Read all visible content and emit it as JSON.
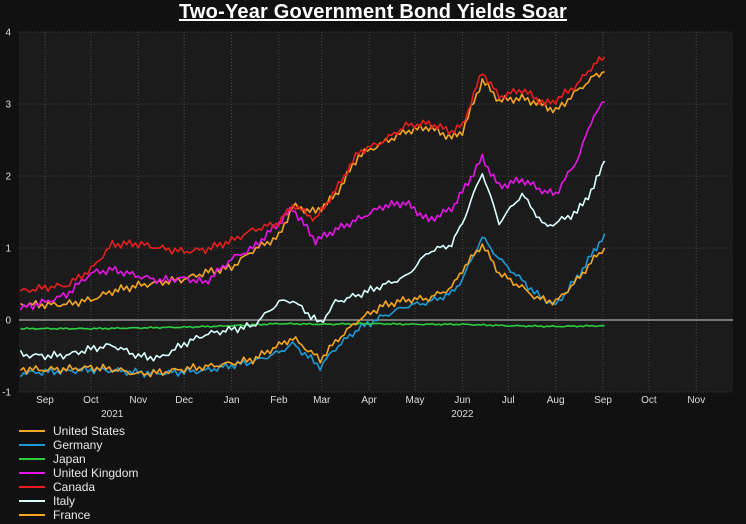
{
  "chart_data": {
    "type": "line",
    "title": "Two-Year Government Bond Yields Soar",
    "xlabel": "",
    "ylabel": "",
    "ylim": [
      -1,
      4
    ],
    "yticks": [
      -1,
      0,
      1,
      2,
      3,
      4
    ],
    "xlim": [
      "2021-08-15",
      "2022-11-25"
    ],
    "xticks": [
      {
        "date": "2021-09-01",
        "label": "Sep"
      },
      {
        "date": "2021-10-01",
        "label": "Oct"
      },
      {
        "date": "2021-11-01",
        "label": "Nov"
      },
      {
        "date": "2021-12-01",
        "label": "Dec"
      },
      {
        "date": "2022-01-01",
        "label": "Jan"
      },
      {
        "date": "2022-02-01",
        "label": "Feb"
      },
      {
        "date": "2022-03-01",
        "label": "Mar"
      },
      {
        "date": "2022-04-01",
        "label": "Apr"
      },
      {
        "date": "2022-05-01",
        "label": "May"
      },
      {
        "date": "2022-06-01",
        "label": "Jun"
      },
      {
        "date": "2022-07-01",
        "label": "Jul"
      },
      {
        "date": "2022-08-01",
        "label": "Aug"
      },
      {
        "date": "2022-09-01",
        "label": "Sep"
      },
      {
        "date": "2022-10-01",
        "label": "Oct"
      },
      {
        "date": "2022-11-01",
        "label": "Nov"
      }
    ],
    "year_labels": [
      {
        "date": "2021-10-15",
        "label": "2021"
      },
      {
        "date": "2022-06-01",
        "label": "2022"
      }
    ],
    "grid": true,
    "legend_position": "bottom-left",
    "series": [
      {
        "name": "United States",
        "color": "#f5a623",
        "points": [
          [
            "2021-08-16",
            0.22
          ],
          [
            "2021-09-01",
            0.21
          ],
          [
            "2021-09-15",
            0.22
          ],
          [
            "2021-10-01",
            0.28
          ],
          [
            "2021-10-15",
            0.4
          ],
          [
            "2021-11-01",
            0.48
          ],
          [
            "2021-11-15",
            0.52
          ],
          [
            "2021-12-01",
            0.57
          ],
          [
            "2021-12-15",
            0.66
          ],
          [
            "2022-01-01",
            0.73
          ],
          [
            "2022-01-15",
            0.97
          ],
          [
            "2022-02-01",
            1.16
          ],
          [
            "2022-02-10",
            1.58
          ],
          [
            "2022-02-25",
            1.5
          ],
          [
            "2022-03-10",
            1.73
          ],
          [
            "2022-03-25",
            2.28
          ],
          [
            "2022-04-10",
            2.46
          ],
          [
            "2022-04-25",
            2.62
          ],
          [
            "2022-05-10",
            2.68
          ],
          [
            "2022-05-25",
            2.53
          ],
          [
            "2022-06-01",
            2.62
          ],
          [
            "2022-06-14",
            3.33
          ],
          [
            "2022-06-25",
            3.05
          ],
          [
            "2022-07-10",
            3.08
          ],
          [
            "2022-07-25",
            2.98
          ],
          [
            "2022-08-01",
            2.9
          ],
          [
            "2022-08-15",
            3.18
          ],
          [
            "2022-08-26",
            3.38
          ],
          [
            "2022-09-02",
            3.45
          ]
        ]
      },
      {
        "name": "Germany",
        "color": "#1e9bd7",
        "points": [
          [
            "2021-08-16",
            -0.74
          ],
          [
            "2021-09-01",
            -0.72
          ],
          [
            "2021-09-15",
            -0.71
          ],
          [
            "2021-10-01",
            -0.69
          ],
          [
            "2021-10-15",
            -0.7
          ],
          [
            "2021-11-01",
            -0.73
          ],
          [
            "2021-11-15",
            -0.74
          ],
          [
            "2021-12-01",
            -0.72
          ],
          [
            "2021-12-15",
            -0.7
          ],
          [
            "2022-01-01",
            -0.63
          ],
          [
            "2022-01-15",
            -0.58
          ],
          [
            "2022-02-01",
            -0.45
          ],
          [
            "2022-02-10",
            -0.33
          ],
          [
            "2022-02-28",
            -0.65
          ],
          [
            "2022-03-10",
            -0.39
          ],
          [
            "2022-03-25",
            -0.12
          ],
          [
            "2022-04-10",
            0.05
          ],
          [
            "2022-04-25",
            0.19
          ],
          [
            "2022-05-10",
            0.25
          ],
          [
            "2022-05-25",
            0.37
          ],
          [
            "2022-06-01",
            0.57
          ],
          [
            "2022-06-14",
            1.15
          ],
          [
            "2022-06-25",
            0.85
          ],
          [
            "2022-07-10",
            0.55
          ],
          [
            "2022-07-20",
            0.35
          ],
          [
            "2022-08-01",
            0.2
          ],
          [
            "2022-08-15",
            0.59
          ],
          [
            "2022-08-26",
            0.95
          ],
          [
            "2022-09-02",
            1.2
          ]
        ]
      },
      {
        "name": "Japan",
        "color": "#2ecc40",
        "points": [
          [
            "2021-08-16",
            -0.12
          ],
          [
            "2021-09-01",
            -0.12
          ],
          [
            "2021-10-01",
            -0.12
          ],
          [
            "2021-11-01",
            -0.11
          ],
          [
            "2021-12-01",
            -0.1
          ],
          [
            "2022-01-01",
            -0.08
          ],
          [
            "2022-02-01",
            -0.05
          ],
          [
            "2022-03-01",
            -0.06
          ],
          [
            "2022-04-01",
            -0.05
          ],
          [
            "2022-05-01",
            -0.06
          ],
          [
            "2022-06-01",
            -0.06
          ],
          [
            "2022-07-01",
            -0.08
          ],
          [
            "2022-08-01",
            -0.09
          ],
          [
            "2022-09-02",
            -0.08
          ]
        ]
      },
      {
        "name": "United Kingdom",
        "color": "#e815e8",
        "points": [
          [
            "2021-08-16",
            0.16
          ],
          [
            "2021-09-01",
            0.25
          ],
          [
            "2021-09-15",
            0.35
          ],
          [
            "2021-10-01",
            0.65
          ],
          [
            "2021-10-15",
            0.7
          ],
          [
            "2021-11-01",
            0.61
          ],
          [
            "2021-11-15",
            0.55
          ],
          [
            "2021-12-01",
            0.58
          ],
          [
            "2021-12-15",
            0.52
          ],
          [
            "2022-01-01",
            0.85
          ],
          [
            "2022-01-15",
            1.0
          ],
          [
            "2022-02-01",
            1.35
          ],
          [
            "2022-02-10",
            1.55
          ],
          [
            "2022-02-25",
            1.1
          ],
          [
            "2022-03-10",
            1.25
          ],
          [
            "2022-03-25",
            1.4
          ],
          [
            "2022-04-10",
            1.58
          ],
          [
            "2022-04-25",
            1.63
          ],
          [
            "2022-05-10",
            1.38
          ],
          [
            "2022-05-25",
            1.55
          ],
          [
            "2022-06-01",
            1.78
          ],
          [
            "2022-06-14",
            2.25
          ],
          [
            "2022-06-25",
            1.85
          ],
          [
            "2022-07-10",
            1.95
          ],
          [
            "2022-07-25",
            1.78
          ],
          [
            "2022-08-01",
            1.75
          ],
          [
            "2022-08-15",
            2.22
          ],
          [
            "2022-08-26",
            2.85
          ],
          [
            "2022-09-02",
            3.03
          ]
        ]
      },
      {
        "name": "Canada",
        "color": "#e81e1e",
        "points": [
          [
            "2021-08-16",
            0.4
          ],
          [
            "2021-09-01",
            0.45
          ],
          [
            "2021-09-15",
            0.48
          ],
          [
            "2021-10-01",
            0.7
          ],
          [
            "2021-10-15",
            1.05
          ],
          [
            "2021-11-01",
            1.06
          ],
          [
            "2021-11-15",
            1.0
          ],
          [
            "2021-12-01",
            0.95
          ],
          [
            "2021-12-15",
            0.98
          ],
          [
            "2022-01-01",
            1.1
          ],
          [
            "2022-01-15",
            1.25
          ],
          [
            "2022-02-01",
            1.35
          ],
          [
            "2022-02-10",
            1.6
          ],
          [
            "2022-02-25",
            1.4
          ],
          [
            "2022-03-10",
            1.8
          ],
          [
            "2022-03-25",
            2.33
          ],
          [
            "2022-04-10",
            2.48
          ],
          [
            "2022-04-25",
            2.7
          ],
          [
            "2022-05-10",
            2.73
          ],
          [
            "2022-05-25",
            2.62
          ],
          [
            "2022-06-01",
            2.7
          ],
          [
            "2022-06-14",
            3.45
          ],
          [
            "2022-06-25",
            3.1
          ],
          [
            "2022-07-10",
            3.2
          ],
          [
            "2022-07-25",
            3.0
          ],
          [
            "2022-08-01",
            3.05
          ],
          [
            "2022-08-15",
            3.27
          ],
          [
            "2022-08-26",
            3.55
          ],
          [
            "2022-09-02",
            3.65
          ]
        ]
      },
      {
        "name": "Italy",
        "color": "#d9fffd",
        "points": [
          [
            "2021-08-16",
            -0.48
          ],
          [
            "2021-09-01",
            -0.5
          ],
          [
            "2021-09-15",
            -0.49
          ],
          [
            "2021-10-01",
            -0.4
          ],
          [
            "2021-10-15",
            -0.35
          ],
          [
            "2021-11-01",
            -0.5
          ],
          [
            "2021-11-15",
            -0.53
          ],
          [
            "2021-12-01",
            -0.33
          ],
          [
            "2021-12-15",
            -0.2
          ],
          [
            "2022-01-01",
            -0.13
          ],
          [
            "2022-01-15",
            -0.08
          ],
          [
            "2022-02-01",
            0.25
          ],
          [
            "2022-02-10",
            0.27
          ],
          [
            "2022-02-28",
            -0.05
          ],
          [
            "2022-03-10",
            0.25
          ],
          [
            "2022-03-25",
            0.35
          ],
          [
            "2022-04-10",
            0.48
          ],
          [
            "2022-04-25",
            0.6
          ],
          [
            "2022-05-10",
            0.95
          ],
          [
            "2022-05-25",
            1.05
          ],
          [
            "2022-06-01",
            1.35
          ],
          [
            "2022-06-14",
            2.05
          ],
          [
            "2022-06-25",
            1.35
          ],
          [
            "2022-07-10",
            1.75
          ],
          [
            "2022-07-25",
            1.3
          ],
          [
            "2022-08-01",
            1.35
          ],
          [
            "2022-08-15",
            1.5
          ],
          [
            "2022-08-26",
            1.85
          ],
          [
            "2022-09-02",
            2.21
          ]
        ]
      },
      {
        "name": "France",
        "color": "#f5a623",
        "points": [
          [
            "2021-08-16",
            -0.68
          ],
          [
            "2021-09-01",
            -0.69
          ],
          [
            "2021-09-15",
            -0.68
          ],
          [
            "2021-10-01",
            -0.66
          ],
          [
            "2021-10-15",
            -0.68
          ],
          [
            "2021-11-01",
            -0.75
          ],
          [
            "2021-11-15",
            -0.73
          ],
          [
            "2021-12-01",
            -0.68
          ],
          [
            "2021-12-15",
            -0.65
          ],
          [
            "2022-01-01",
            -0.6
          ],
          [
            "2022-01-15",
            -0.55
          ],
          [
            "2022-02-01",
            -0.35
          ],
          [
            "2022-02-10",
            -0.25
          ],
          [
            "2022-02-28",
            -0.55
          ],
          [
            "2022-03-10",
            -0.3
          ],
          [
            "2022-03-25",
            0.0
          ],
          [
            "2022-04-10",
            0.2
          ],
          [
            "2022-04-25",
            0.28
          ],
          [
            "2022-05-10",
            0.3
          ],
          [
            "2022-05-25",
            0.45
          ],
          [
            "2022-06-01",
            0.7
          ],
          [
            "2022-06-14",
            1.05
          ],
          [
            "2022-06-25",
            0.65
          ],
          [
            "2022-07-10",
            0.45
          ],
          [
            "2022-07-20",
            0.3
          ],
          [
            "2022-08-01",
            0.25
          ],
          [
            "2022-08-15",
            0.55
          ],
          [
            "2022-08-26",
            0.85
          ],
          [
            "2022-09-02",
            1.0
          ]
        ]
      }
    ]
  }
}
